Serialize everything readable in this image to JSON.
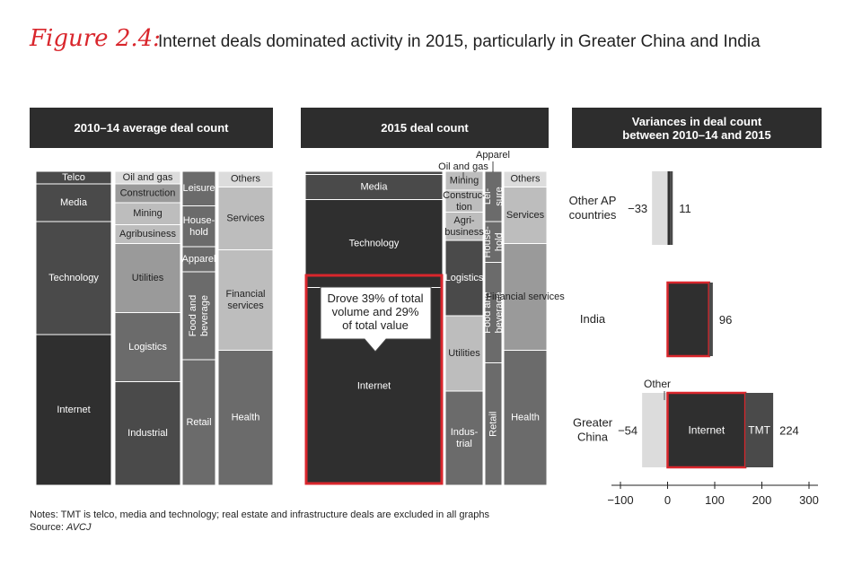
{
  "figure": {
    "label": "Figure 2.4:",
    "title": "Internet deals dominated activity in 2015, particularly in Greater China and India"
  },
  "panels": {
    "left_title": "2010–14 average deal count",
    "middle_title": "2015 deal count",
    "right_title_1": "Variances in deal count",
    "right_title_2": "between 2010–14 and 2015"
  },
  "callout": {
    "line1": "Drove 39% of total",
    "line2": "volume and 29%",
    "line3": "of total value"
  },
  "notes": {
    "line1": "Notes: TMT is telco, media and technology; real estate and infrastructure deals are excluded in all graphs",
    "source_prefix": "Source: ",
    "source": "AVCJ"
  },
  "colors": {
    "dark": "#2f2f2f",
    "mid_dark": "#4a4a4a",
    "mid": "#6b6b6b",
    "light": "#9a9a9a",
    "lighter": "#bdbdbd",
    "lightest": "#dcdcdc",
    "highlight": "#d9262c"
  },
  "chart_data": [
    {
      "type": "mekko",
      "title": "2010–14 average deal count",
      "columns": [
        {
          "segments": [
            {
              "label": "Telco",
              "share": 0.04
            },
            {
              "label": "Media",
              "share": 0.12
            },
            {
              "label": "Technology",
              "share": 0.36
            },
            {
              "label": "Internet",
              "share": 0.48
            }
          ]
        },
        {
          "segments": [
            {
              "label": "Oil and gas",
              "share": 0.04
            },
            {
              "label": "Construction",
              "share": 0.06
            },
            {
              "label": "Mining",
              "share": 0.07
            },
            {
              "label": "Agribusiness",
              "share": 0.06
            },
            {
              "label": "Utilities",
              "share": 0.22
            },
            {
              "label": "Logistics",
              "share": 0.22
            },
            {
              "label": "Industrial",
              "share": 0.33
            }
          ]
        },
        {
          "segments": [
            {
              "label": "Leisure",
              "share": 0.11
            },
            {
              "label": "Household",
              "share": 0.13
            },
            {
              "label": "Apparel",
              "share": 0.08
            },
            {
              "label": "Food and beverage",
              "share": 0.28
            },
            {
              "label": "Retail",
              "share": 0.4
            }
          ]
        },
        {
          "segments": [
            {
              "label": "Others",
              "share": 0.05
            },
            {
              "label": "Services",
              "share": 0.2
            },
            {
              "label": "Financial services",
              "share": 0.32
            },
            {
              "label": "Health",
              "share": 0.43
            }
          ]
        }
      ]
    },
    {
      "type": "mekko",
      "title": "2015 deal count",
      "columns": [
        {
          "segments": [
            {
              "label": "",
              "share": 0.01
            },
            {
              "label": "Media",
              "share": 0.08
            },
            {
              "label": "Technology",
              "share": 0.28
            },
            {
              "label": "Internet",
              "share": 0.63
            }
          ]
        },
        {
          "segments": [
            {
              "label": "Mining",
              "share": 0.06
            },
            {
              "label": "Construction",
              "share": 0.07
            },
            {
              "label": "Agribusiness",
              "share": 0.09
            },
            {
              "label": "Logistics",
              "share": 0.24
            },
            {
              "label": "Utilities",
              "share": 0.24
            },
            {
              "label": "Industrial",
              "share": 0.3
            }
          ]
        },
        {
          "segments": [
            {
              "label": "Leisure",
              "share": 0.16
            },
            {
              "label": "Household",
              "share": 0.13
            },
            {
              "label": "Food and beverage",
              "share": 0.32
            },
            {
              "label": "Retail",
              "share": 0.39
            }
          ]
        },
        {
          "segments": [
            {
              "label": "Others",
              "share": 0.05
            },
            {
              "label": "Services",
              "share": 0.18
            },
            {
              "label": "Financial services",
              "share": 0.34
            },
            {
              "label": "Health",
              "share": 0.43
            }
          ]
        }
      ],
      "annotations": [
        "Apparel",
        "Oil and gas"
      ]
    },
    {
      "type": "bar",
      "title": "Variances in deal count between 2010–14 and 2015",
      "xlim": [
        -100,
        300
      ],
      "ticks": [
        "−100",
        "0",
        "100",
        "200",
        "300"
      ],
      "rows": [
        {
          "category": "Other AP countries",
          "negative_label": "−33",
          "positive_label": "11",
          "negative": -33,
          "positive": 11
        },
        {
          "category": "India",
          "negative_label": "",
          "positive_label": "96",
          "negative": 0,
          "positive": 96
        },
        {
          "category": "Greater China",
          "negative_label": "−54",
          "positive_label": "224",
          "negative": -54,
          "positive": 224,
          "segments": [
            {
              "label": "Other",
              "value": -54
            },
            {
              "label": "Internet",
              "value": 165
            },
            {
              "label": "TMT",
              "value": 59
            }
          ]
        }
      ]
    }
  ]
}
